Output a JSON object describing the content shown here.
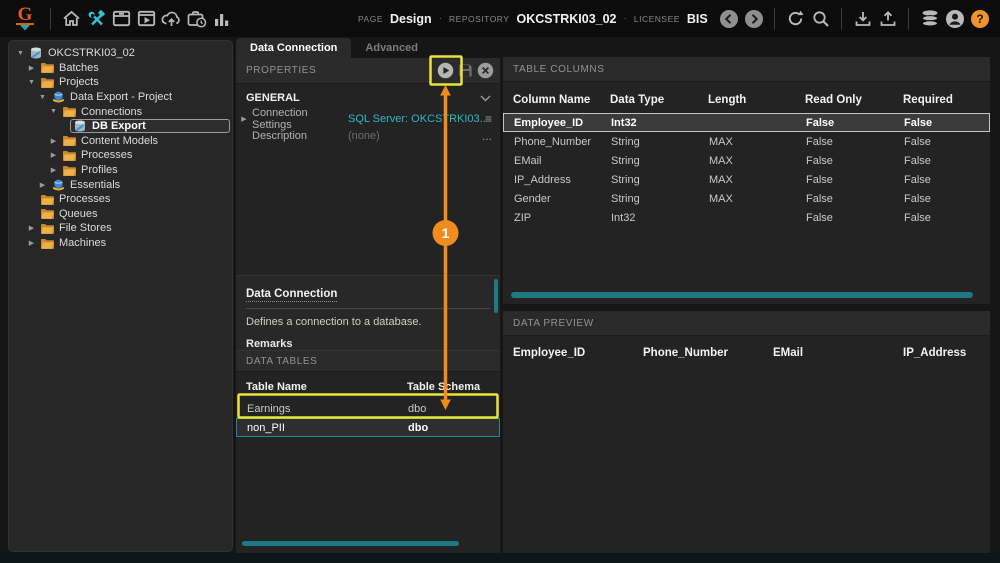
{
  "colors": {
    "accent_teal": "#2db8c4",
    "scrollbar_teal": "#1e7a82",
    "highlight_yellow": "#e9e43c",
    "annotation_orange": "#f08c1e",
    "folder_yellow": "#edb14a"
  },
  "topbar": {
    "logo_text": "G",
    "left_icons": [
      "home-icon",
      "design-tools-icon",
      "batch-box-icon",
      "media-box-icon",
      "cloud-upload-icon",
      "briefcase-clock-icon",
      "stats-icon"
    ],
    "page_label": "PAGE",
    "page_value": "Design",
    "separator": "·",
    "repository_label": "REPOSITORY",
    "repository_value": "OKCSTRKI03_02",
    "licensee_label": "LICENSEE",
    "licensee_value": "BIS",
    "right_icons": [
      "back-icon",
      "forward-icon",
      "refresh-icon",
      "search-icon",
      "download-icon",
      "upload-icon",
      "database-stack-icon",
      "user-icon",
      "help-icon"
    ]
  },
  "tree": {
    "items": [
      {
        "label": "OKCSTRKI03_02",
        "level": 0,
        "expander": "expanded",
        "icon": "database",
        "selected": false
      },
      {
        "label": "Batches",
        "level": 1,
        "expander": "collapsed",
        "icon": "folder",
        "selected": false
      },
      {
        "label": "Projects",
        "level": 1,
        "expander": "expanded",
        "icon": "folder",
        "selected": false
      },
      {
        "label": "Data Export - Project",
        "level": 2,
        "expander": "expanded",
        "icon": "project",
        "selected": false
      },
      {
        "label": "Connections",
        "level": 3,
        "expander": "expanded",
        "icon": "folder",
        "selected": false
      },
      {
        "label": "DB Export",
        "level": 4,
        "expander": "none",
        "icon": "database",
        "selected": true
      },
      {
        "label": "Content Models",
        "level": 3,
        "expander": "collapsed",
        "icon": "folder",
        "selected": false
      },
      {
        "label": "Processes",
        "level": 3,
        "expander": "collapsed",
        "icon": "folder",
        "selected": false
      },
      {
        "label": "Profiles",
        "level": 3,
        "expander": "collapsed",
        "icon": "folder",
        "selected": false
      },
      {
        "label": "Essentials",
        "level": 2,
        "expander": "collapsed",
        "icon": "project",
        "selected": false
      },
      {
        "label": "Processes",
        "level": 1,
        "expander": "none",
        "icon": "folder",
        "selected": false
      },
      {
        "label": "Queues",
        "level": 1,
        "expander": "none",
        "icon": "folder",
        "selected": false
      },
      {
        "label": "File Stores",
        "level": 1,
        "expander": "collapsed",
        "icon": "folder",
        "selected": false
      },
      {
        "label": "Machines",
        "level": 1,
        "expander": "collapsed",
        "icon": "folder",
        "selected": false
      }
    ]
  },
  "middle": {
    "tabs": [
      {
        "label": "Data Connection",
        "active": true
      },
      {
        "label": "Advanced",
        "active": false
      }
    ],
    "properties_header": "PROPERTIES",
    "properties_icons": [
      "play-icon",
      "save-icon",
      "close-icon"
    ],
    "general": {
      "section_label": "GENERAL",
      "connection_settings_label": "Connection Settings",
      "connection_settings_value": "SQL Server: OKCSTRKI03...",
      "menu_glyph": "≡",
      "description_label": "Description",
      "description_value": "(none)",
      "more_glyph": "..."
    },
    "help": {
      "title": "Data Connection",
      "body": "Defines a connection to a database.",
      "remarks_label": "Remarks"
    },
    "data_tables": {
      "header": "DATA TABLES",
      "columns": [
        "Table Name",
        "Table Schema"
      ],
      "rows": [
        [
          "Earnings",
          "dbo"
        ],
        [
          "non_PII",
          "dbo"
        ]
      ],
      "selected_index": 1
    }
  },
  "table_columns": {
    "header": "TABLE COLUMNS",
    "columns": [
      "Column Name",
      "Data Type",
      "Length",
      "Read Only",
      "Required"
    ],
    "rows": [
      [
        "Employee_ID",
        "Int32",
        "",
        "False",
        "False"
      ],
      [
        "Phone_Number",
        "String",
        "MAX",
        "False",
        "False"
      ],
      [
        "EMail",
        "String",
        "MAX",
        "False",
        "False"
      ],
      [
        "IP_Address",
        "String",
        "MAX",
        "False",
        "False"
      ],
      [
        "Gender",
        "String",
        "MAX",
        "False",
        "False"
      ],
      [
        "ZIP",
        "Int32",
        "",
        "False",
        "False"
      ]
    ],
    "selected_index": 0
  },
  "data_preview": {
    "header": "DATA PREVIEW",
    "columns": [
      "Employee_ID",
      "Phone_Number",
      "EMail",
      "IP_Address"
    ]
  },
  "annotation": {
    "step": "1"
  }
}
